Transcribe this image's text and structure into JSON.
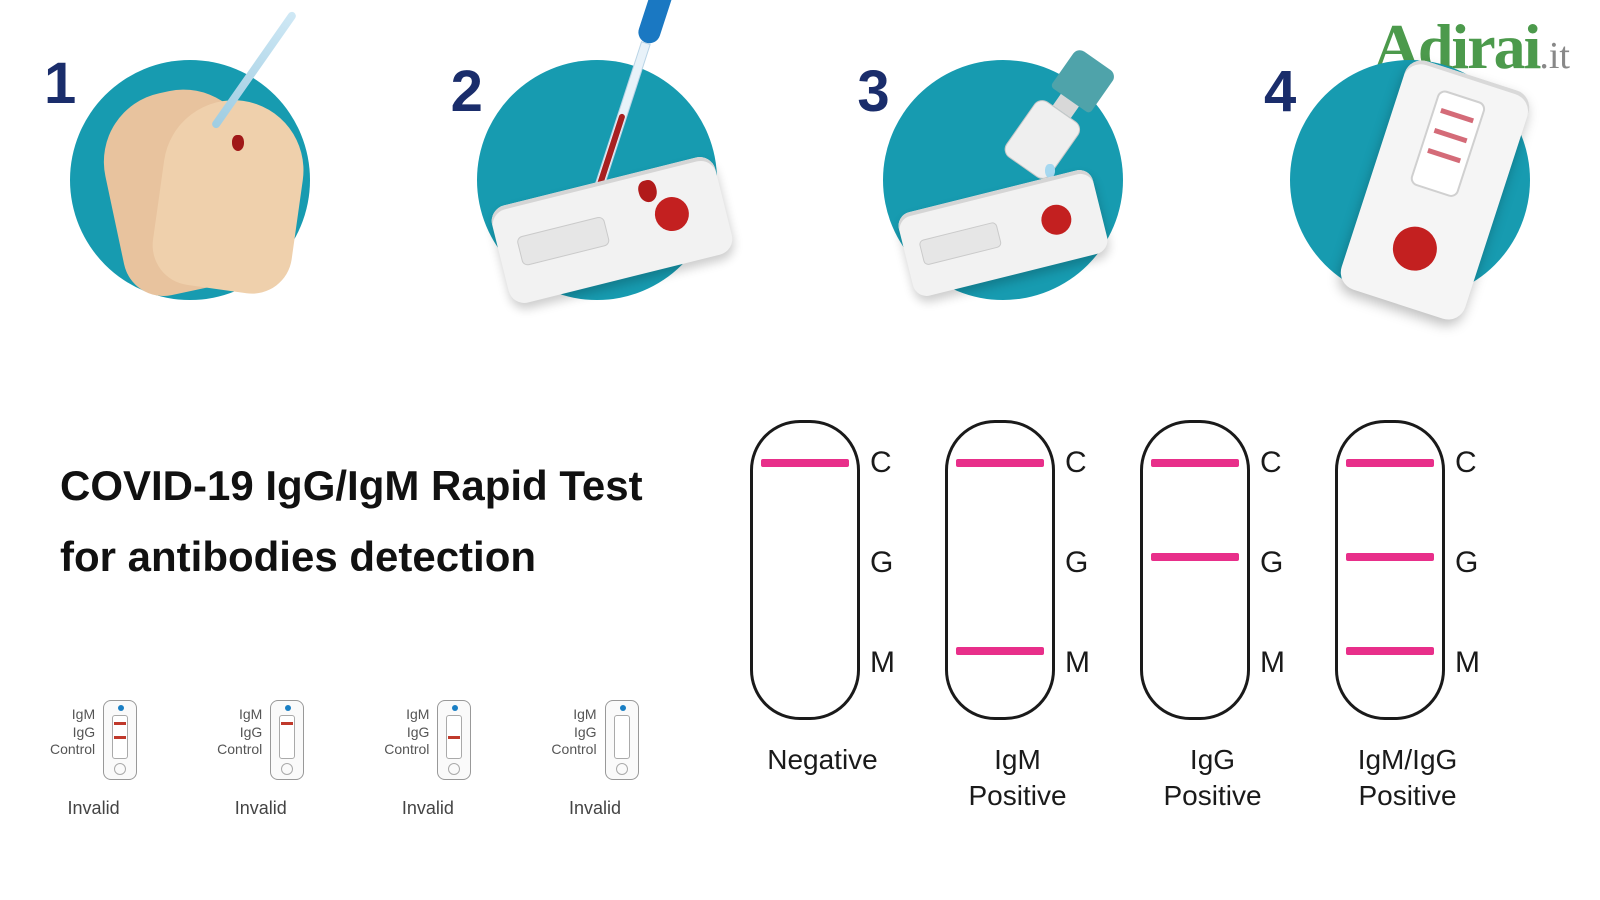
{
  "logo": {
    "name": "Adirai",
    "ext": ".it",
    "name_color": "#4c9a4c",
    "ext_color": "#888888",
    "font_size_main": 64,
    "font_size_ext": 38
  },
  "steps": {
    "circle_color": "#179bb0",
    "number_color": "#1a2d6b",
    "number_fontsize": 58,
    "circle_diameter": 240,
    "items": [
      {
        "num": "1"
      },
      {
        "num": "2"
      },
      {
        "num": "3"
      },
      {
        "num": "4"
      }
    ]
  },
  "title": {
    "line1": "COVID-19 IgG/IgM Rapid Test",
    "line2": "for antibodies detection",
    "fontsize": 42,
    "color": "#111111"
  },
  "results": {
    "line_color": "#e82f8a",
    "border_color": "#1a1a1a",
    "strip_width": 110,
    "strip_height": 300,
    "marks": [
      "C",
      "G",
      "M"
    ],
    "mark_fontsize": 30,
    "label_fontsize": 28,
    "items": [
      {
        "label": "Negative",
        "lines": {
          "C": true,
          "G": false,
          "M": false
        }
      },
      {
        "label": "IgM\nPositive",
        "lines": {
          "C": true,
          "G": false,
          "M": true
        }
      },
      {
        "label": "IgG\nPositive",
        "lines": {
          "C": true,
          "G": true,
          "M": false
        }
      },
      {
        "label": "IgM/IgG\nPositive",
        "lines": {
          "C": true,
          "G": true,
          "M": true
        }
      }
    ]
  },
  "invalid": {
    "side_labels": [
      "IgM",
      "IgG",
      "Control"
    ],
    "label": "Invalid",
    "label_fontsize": 18,
    "side_fontsize": 14,
    "line_color": "#c0392b",
    "items": [
      {
        "lines": {
          "IgM": true,
          "IgG": true,
          "Control": false
        }
      },
      {
        "lines": {
          "IgM": true,
          "IgG": false,
          "Control": false
        }
      },
      {
        "lines": {
          "IgM": false,
          "IgG": true,
          "Control": false
        }
      },
      {
        "lines": {
          "IgM": false,
          "IgG": false,
          "Control": false
        }
      }
    ]
  },
  "palette": {
    "background": "#ffffff",
    "skin1": "#e8c39e",
    "skin2": "#efd0ac",
    "blood": "#b11a1a",
    "cassette": "#f2f2f2",
    "buffer_cap": "#4fa3aa",
    "pipette_bulb": "#1a78c2"
  }
}
